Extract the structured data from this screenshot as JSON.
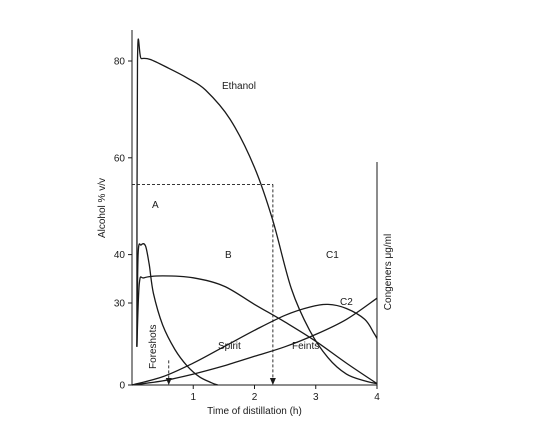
{
  "chart_data": {
    "type": "line",
    "xlabel": "Time of distillation (h)",
    "ylabel": "Alcohol % v/v",
    "ylabel_right": "Congeners μg/ml",
    "x_ticks": [
      "1",
      "2",
      "3",
      "4"
    ],
    "y_ticks": [
      "0",
      "30",
      "40",
      "60",
      "80"
    ],
    "xlim": [
      0,
      4
    ],
    "region_labels": [
      "Foreshots",
      "Spirit",
      "Feints"
    ],
    "series": [
      {
        "name": "Ethanol",
        "points": [
          [
            0.08,
            14
          ],
          [
            0.09,
            80
          ],
          [
            0.15,
            80.5
          ],
          [
            0.3,
            80.3
          ],
          [
            0.6,
            78.5
          ],
          [
            0.9,
            76.5
          ],
          [
            1.2,
            74
          ],
          [
            1.6,
            68
          ],
          [
            2.0,
            58
          ],
          [
            2.3,
            47
          ],
          [
            2.6,
            33
          ],
          [
            2.9,
            20
          ],
          [
            3.2,
            10
          ],
          [
            3.5,
            4
          ],
          [
            3.8,
            1.5
          ],
          [
            4.0,
            0.5
          ]
        ]
      },
      {
        "name": "A",
        "points": [
          [
            0.08,
            14
          ],
          [
            0.1,
            40
          ],
          [
            0.15,
            42
          ],
          [
            0.22,
            41.8
          ],
          [
            0.28,
            38
          ],
          [
            0.35,
            32
          ],
          [
            0.5,
            22
          ],
          [
            0.7,
            13
          ],
          [
            0.9,
            7
          ],
          [
            1.1,
            3
          ],
          [
            1.3,
            0.8
          ],
          [
            1.4,
            0
          ]
        ]
      },
      {
        "name": "B",
        "points": [
          [
            0.08,
            14
          ],
          [
            0.12,
            34
          ],
          [
            0.2,
            35.2
          ],
          [
            0.5,
            35.6
          ],
          [
            1.0,
            35.2
          ],
          [
            1.5,
            33.5
          ],
          [
            2.0,
            29.5
          ],
          [
            2.5,
            23
          ],
          [
            3.0,
            16
          ],
          [
            3.5,
            8
          ],
          [
            4.0,
            0.5
          ]
        ]
      },
      {
        "name": "C1",
        "points": [
          [
            0,
            0
          ],
          [
            0.5,
            3
          ],
          [
            1.0,
            8
          ],
          [
            1.5,
            14
          ],
          [
            2.0,
            20
          ],
          [
            2.5,
            25.5
          ],
          [
            2.9,
            28.5
          ],
          [
            3.2,
            29.5
          ],
          [
            3.5,
            28
          ],
          [
            3.8,
            24
          ],
          [
            3.95,
            19
          ],
          [
            4.0,
            17
          ]
        ]
      },
      {
        "name": "C2",
        "points": [
          [
            0,
            0
          ],
          [
            0.5,
            1.5
          ],
          [
            1.0,
            4
          ],
          [
            1.5,
            7
          ],
          [
            2.0,
            10.5
          ],
          [
            2.5,
            14
          ],
          [
            3.0,
            18.5
          ],
          [
            3.5,
            24
          ],
          [
            4.0,
            31
          ]
        ]
      }
    ],
    "markers": [
      {
        "type": "horizontal",
        "y": 54.5,
        "x_from": 0,
        "x_to": 2.3
      },
      {
        "type": "vertical",
        "x": 2.3,
        "y_from": 54.5,
        "y_to": 0,
        "arrow": true
      },
      {
        "type": "vertical",
        "x": 0.6,
        "y_from": 9,
        "y_to": 0,
        "arrow": true
      }
    ]
  }
}
